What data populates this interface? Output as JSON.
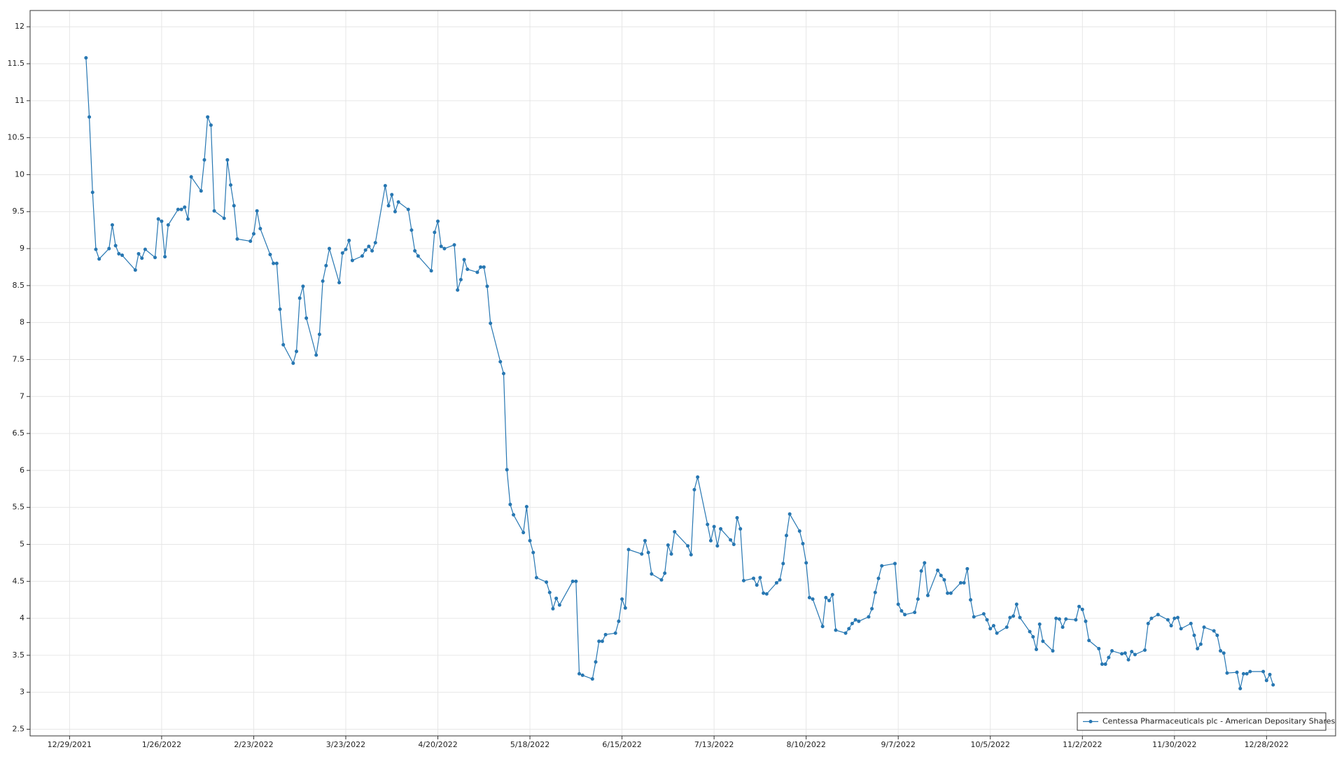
{
  "chart_data": {
    "type": "line",
    "xlim": [
      "12/17/2021",
      "1/18/2023"
    ],
    "xticks": [
      "12/29/2021",
      "1/26/2022",
      "2/23/2022",
      "3/23/2022",
      "4/20/2022",
      "5/18/2022",
      "6/15/2022",
      "7/13/2022",
      "8/10/2022",
      "9/7/2022",
      "10/5/2022",
      "11/2/2022",
      "11/30/2022",
      "12/28/2022"
    ],
    "ylim": [
      2.41,
      12.22
    ],
    "yticks": [
      2.5,
      3,
      3.5,
      4,
      4.5,
      5,
      5.5,
      6,
      6.5,
      7,
      7.5,
      8,
      8.5,
      9,
      9.5,
      10,
      10.5,
      11,
      11.5,
      12
    ],
    "grid": true,
    "legend": "lower right",
    "x": [
      "1/3/2022",
      "1/4/2022",
      "1/5/2022",
      "1/6/2022",
      "1/7/2022",
      "1/10/2022",
      "1/11/2022",
      "1/12/2022",
      "1/13/2022",
      "1/14/2022",
      "1/18/2022",
      "1/19/2022",
      "1/20/2022",
      "1/21/2022",
      "1/24/2022",
      "1/25/2022",
      "1/26/2022",
      "1/27/2022",
      "1/28/2022",
      "1/31/2022",
      "2/1/2022",
      "2/2/2022",
      "2/3/2022",
      "2/4/2022",
      "2/7/2022",
      "2/8/2022",
      "2/9/2022",
      "2/10/2022",
      "2/11/2022",
      "2/14/2022",
      "2/15/2022",
      "2/16/2022",
      "2/17/2022",
      "2/18/2022",
      "2/22/2022",
      "2/23/2022",
      "2/24/2022",
      "2/25/2022",
      "2/28/2022",
      "3/1/2022",
      "3/2/2022",
      "3/3/2022",
      "3/4/2022",
      "3/7/2022",
      "3/8/2022",
      "3/9/2022",
      "3/10/2022",
      "3/11/2022",
      "3/14/2022",
      "3/15/2022",
      "3/16/2022",
      "3/17/2022",
      "3/18/2022",
      "3/21/2022",
      "3/22/2022",
      "3/23/2022",
      "3/24/2022",
      "3/25/2022",
      "3/28/2022",
      "3/29/2022",
      "3/30/2022",
      "3/31/2022",
      "4/1/2022",
      "4/4/2022",
      "4/5/2022",
      "4/6/2022",
      "4/7/2022",
      "4/8/2022",
      "4/11/2022",
      "4/12/2022",
      "4/13/2022",
      "4/14/2022",
      "4/18/2022",
      "4/19/2022",
      "4/20/2022",
      "4/21/2022",
      "4/22/2022",
      "4/25/2022",
      "4/26/2022",
      "4/27/2022",
      "4/28/2022",
      "4/29/2022",
      "5/2/2022",
      "5/3/2022",
      "5/4/2022",
      "5/5/2022",
      "5/6/2022",
      "5/9/2022",
      "5/10/2022",
      "5/11/2022",
      "5/12/2022",
      "5/13/2022",
      "5/16/2022",
      "5/17/2022",
      "5/18/2022",
      "5/19/2022",
      "5/20/2022",
      "5/23/2022",
      "5/24/2022",
      "5/25/2022",
      "5/26/2022",
      "5/27/2022",
      "5/31/2022",
      "6/1/2022",
      "6/2/2022",
      "6/3/2022",
      "6/6/2022",
      "6/7/2022",
      "6/8/2022",
      "6/9/2022",
      "6/10/2022",
      "6/13/2022",
      "6/14/2022",
      "6/15/2022",
      "6/16/2022",
      "6/17/2022",
      "6/21/2022",
      "6/22/2022",
      "6/23/2022",
      "6/24/2022",
      "6/27/2022",
      "6/28/2022",
      "6/29/2022",
      "6/30/2022",
      "7/1/2022",
      "7/5/2022",
      "7/6/2022",
      "7/7/2022",
      "7/8/2022",
      "7/11/2022",
      "7/12/2022",
      "7/13/2022",
      "7/14/2022",
      "7/15/2022",
      "7/18/2022",
      "7/19/2022",
      "7/20/2022",
      "7/21/2022",
      "7/22/2022",
      "7/25/2022",
      "7/26/2022",
      "7/27/2022",
      "7/28/2022",
      "7/29/2022",
      "8/1/2022",
      "8/2/2022",
      "8/3/2022",
      "8/4/2022",
      "8/5/2022",
      "8/8/2022",
      "8/9/2022",
      "8/10/2022",
      "8/11/2022",
      "8/12/2022",
      "8/15/2022",
      "8/16/2022",
      "8/17/2022",
      "8/18/2022",
      "8/19/2022",
      "8/22/2022",
      "8/23/2022",
      "8/24/2022",
      "8/25/2022",
      "8/26/2022",
      "8/29/2022",
      "8/30/2022",
      "8/31/2022",
      "9/1/2022",
      "9/2/2022",
      "9/6/2022",
      "9/7/2022",
      "9/8/2022",
      "9/9/2022",
      "9/12/2022",
      "9/13/2022",
      "9/14/2022",
      "9/15/2022",
      "9/16/2022",
      "9/19/2022",
      "9/20/2022",
      "9/21/2022",
      "9/22/2022",
      "9/23/2022",
      "9/26/2022",
      "9/27/2022",
      "9/28/2022",
      "9/29/2022",
      "9/30/2022",
      "10/3/2022",
      "10/4/2022",
      "10/5/2022",
      "10/6/2022",
      "10/7/2022",
      "10/10/2022",
      "10/11/2022",
      "10/12/2022",
      "10/13/2022",
      "10/14/2022",
      "10/17/2022",
      "10/18/2022",
      "10/19/2022",
      "10/20/2022",
      "10/21/2022",
      "10/24/2022",
      "10/25/2022",
      "10/26/2022",
      "10/27/2022",
      "10/28/2022",
      "10/31/2022",
      "11/1/2022",
      "11/2/2022",
      "11/3/2022",
      "11/4/2022",
      "11/7/2022",
      "11/8/2022",
      "11/9/2022",
      "11/10/2022",
      "11/11/2022",
      "11/14/2022",
      "11/15/2022",
      "11/16/2022",
      "11/17/2022",
      "11/18/2022",
      "11/21/2022",
      "11/22/2022",
      "11/23/2022",
      "11/25/2022",
      "11/28/2022",
      "11/29/2022",
      "11/30/2022",
      "12/1/2022",
      "12/2/2022",
      "12/5/2022",
      "12/6/2022",
      "12/7/2022",
      "12/8/2022",
      "12/9/2022",
      "12/12/2022",
      "12/13/2022",
      "12/14/2022",
      "12/15/2022",
      "12/16/2022",
      "12/19/2022",
      "12/20/2022",
      "12/21/2022",
      "12/22/2022",
      "12/23/2022",
      "12/27/2022",
      "12/28/2022",
      "12/29/2022",
      "12/30/2022"
    ],
    "series": [
      {
        "name": "Centessa Pharmaceuticals plc - American Depositary Shares",
        "color": "#2777b2",
        "values": [
          11.58,
          10.78,
          9.76,
          8.99,
          8.86,
          9.0,
          9.32,
          9.04,
          8.93,
          8.91,
          8.71,
          8.93,
          8.87,
          8.99,
          8.88,
          9.4,
          9.37,
          8.89,
          9.32,
          9.53,
          9.53,
          9.56,
          9.4,
          9.97,
          9.78,
          10.2,
          10.78,
          10.67,
          9.51,
          9.41,
          10.2,
          9.86,
          9.58,
          9.13,
          9.1,
          9.2,
          9.51,
          9.27,
          8.92,
          8.8,
          8.8,
          8.18,
          7.7,
          7.45,
          7.61,
          8.33,
          8.49,
          8.06,
          7.56,
          7.84,
          8.56,
          8.77,
          9.0,
          8.54,
          8.94,
          8.99,
          9.11,
          8.84,
          8.9,
          8.98,
          9.03,
          8.97,
          9.08,
          9.85,
          9.58,
          9.73,
          9.5,
          9.63,
          9.53,
          9.25,
          8.97,
          8.9,
          8.7,
          9.22,
          9.37,
          9.03,
          9.0,
          9.05,
          8.44,
          8.58,
          8.85,
          8.72,
          8.68,
          8.75,
          8.75,
          8.49,
          7.99,
          7.47,
          7.31,
          6.01,
          5.54,
          5.4,
          5.16,
          5.51,
          5.05,
          4.89,
          4.55,
          4.49,
          4.35,
          4.13,
          4.27,
          4.18,
          4.5,
          4.5,
          3.25,
          3.23,
          3.18,
          3.41,
          3.69,
          3.69,
          3.78,
          3.8,
          3.96,
          4.26,
          4.14,
          4.93,
          4.87,
          5.05,
          4.89,
          4.6,
          4.52,
          4.61,
          4.99,
          4.87,
          5.17,
          4.98,
          4.86,
          5.74,
          5.91,
          5.27,
          5.05,
          5.24,
          4.98,
          5.21,
          5.06,
          5.0,
          5.36,
          5.21,
          4.51,
          4.54,
          4.45,
          4.55,
          4.34,
          4.33,
          4.48,
          4.52,
          4.74,
          5.12,
          5.41,
          5.18,
          5.01,
          4.75,
          4.28,
          4.26,
          3.89,
          4.28,
          4.24,
          4.32,
          3.84,
          3.8,
          3.86,
          3.93,
          3.98,
          3.96,
          4.02,
          4.13,
          4.35,
          4.54,
          4.71,
          4.74,
          4.19,
          4.1,
          4.05,
          4.08,
          4.26,
          4.64,
          4.75,
          4.31,
          4.65,
          4.58,
          4.52,
          4.34,
          4.34,
          4.48,
          4.48,
          4.67,
          4.25,
          4.02,
          4.06,
          3.98,
          3.86,
          3.9,
          3.8,
          3.88,
          4.01,
          4.03,
          4.19,
          4.01,
          3.82,
          3.75,
          3.58,
          3.92,
          3.69,
          3.56,
          4.0,
          3.99,
          3.88,
          3.99,
          3.98,
          4.16,
          4.12,
          3.96,
          3.7,
          3.59,
          3.38,
          3.38,
          3.47,
          3.56,
          3.52,
          3.53,
          3.44,
          3.55,
          3.51,
          3.57,
          3.93,
          4.0,
          4.05,
          3.98,
          3.9,
          4.0,
          4.01,
          3.86,
          3.93,
          3.77,
          3.59,
          3.65,
          3.88,
          3.83,
          3.77,
          3.56,
          3.53,
          3.26,
          3.27,
          3.05,
          3.25,
          3.25,
          3.28,
          3.28,
          3.16,
          3.24,
          3.1
        ]
      }
    ]
  }
}
